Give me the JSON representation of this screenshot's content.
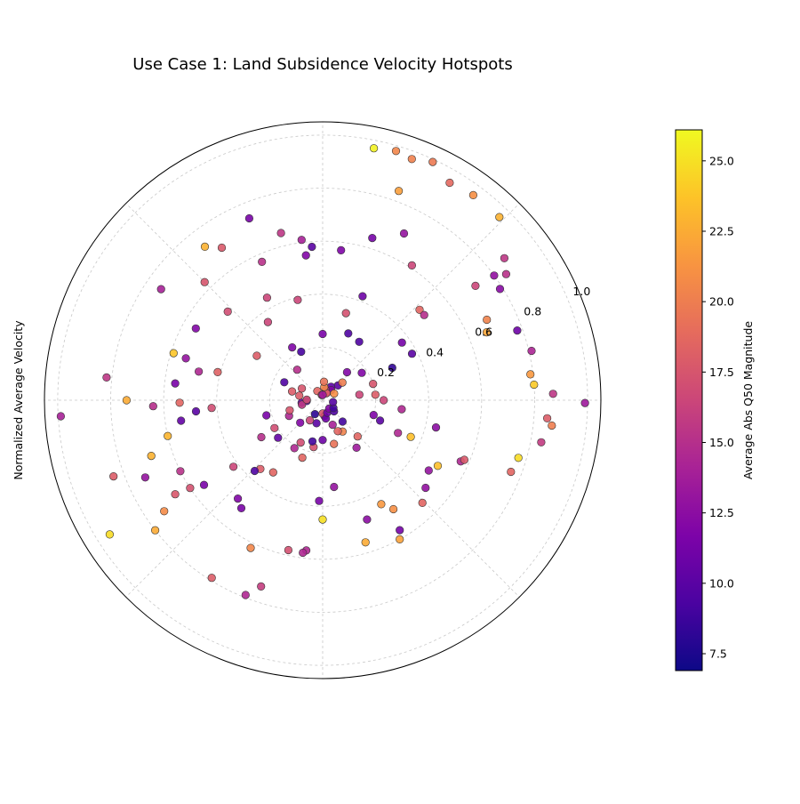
{
  "chart_data": {
    "type": "scatter",
    "projection": "polar",
    "title": "Use Case 1: Land Subsidence Velocity Hotspots",
    "ylabel": "Normalized Average Velocity",
    "rlim": [
      0,
      1.05
    ],
    "r_ticks": [
      0.2,
      0.4,
      0.6,
      0.8,
      1.0
    ],
    "r_tick_labels": [
      "0.2",
      "0.4",
      "0.6",
      "0.8",
      "1.0"
    ],
    "angular_gridlines_deg": [
      0,
      45,
      90,
      135,
      180,
      225,
      270,
      315
    ],
    "grid": true,
    "colormap": "plasma",
    "colorbar": {
      "label": "Average Abs Q50 Magnitude",
      "vmin": 6.9,
      "vmax": 26.1,
      "ticks": [
        7.5,
        10.0,
        12.5,
        15.0,
        17.5,
        20.0,
        22.5,
        25.0
      ],
      "tick_labels": [
        "7.5",
        "10.0",
        "12.5",
        "15.0",
        "17.5",
        "20.0",
        "22.5",
        "25.0"
      ]
    },
    "points_theta_deg_r_color": [
      [
        78.5,
        0.97,
        25.8
      ],
      [
        73.6,
        0.98,
        20.5
      ],
      [
        69.7,
        0.97,
        20.2
      ],
      [
        65.2,
        0.99,
        19.8
      ],
      [
        59.7,
        0.95,
        18.7
      ],
      [
        53.7,
        0.96,
        21.0
      ],
      [
        46.0,
        0.96,
        22.8
      ],
      [
        38.0,
        0.87,
        15.5
      ],
      [
        34.5,
        0.84,
        15.2
      ],
      [
        36.0,
        0.8,
        12.8
      ],
      [
        36.8,
        0.72,
        16.5
      ],
      [
        32.1,
        0.79,
        12.3
      ],
      [
        26.1,
        0.69,
        20.3
      ],
      [
        22.5,
        0.67,
        22.1
      ],
      [
        19.7,
        0.78,
        11.0
      ],
      [
        13.3,
        0.81,
        14.3
      ],
      [
        7.1,
        0.79,
        21.5
      ],
      [
        4.2,
        0.8,
        24.0
      ],
      [
        1.6,
        0.87,
        15.5
      ],
      [
        -0.6,
        0.99,
        13.5
      ],
      [
        -4.6,
        0.85,
        18.0
      ],
      [
        -6.3,
        0.87,
        20.0
      ],
      [
        -10.9,
        0.84,
        15.8
      ],
      [
        -16.4,
        0.77,
        24.8
      ],
      [
        -20.8,
        0.76,
        18.5
      ],
      [
        -23.9,
        0.57,
        14.5
      ],
      [
        -22.8,
        0.58,
        17.8
      ],
      [
        -29.7,
        0.5,
        23.5
      ],
      [
        -40.4,
        0.51,
        12.8
      ],
      [
        -33.5,
        0.48,
        13.0
      ],
      [
        -45.8,
        0.54,
        18.5
      ],
      [
        -57.0,
        0.49,
        21.0
      ],
      [
        -60.6,
        0.45,
        21.5
      ],
      [
        -59.3,
        0.57,
        11.3
      ],
      [
        -61.0,
        0.6,
        22.0
      ],
      [
        -69.6,
        0.48,
        12.5
      ],
      [
        -73.2,
        0.56,
        22.5
      ],
      [
        -82.5,
        0.33,
        13.0
      ],
      [
        -90.0,
        0.45,
        25.0
      ],
      [
        -92.0,
        0.38,
        11.5
      ],
      [
        -96.2,
        0.57,
        14.5
      ],
      [
        -97.4,
        0.58,
        14.5
      ],
      [
        -102.9,
        0.58,
        17.2
      ],
      [
        -111.6,
        0.79,
        14.5
      ],
      [
        -108.3,
        0.74,
        16.0
      ],
      [
        -116.0,
        0.62,
        20.5
      ],
      [
        -122.0,
        0.79,
        18.0
      ],
      [
        -127.0,
        0.51,
        11.5
      ],
      [
        -130.8,
        0.49,
        12.0
      ],
      [
        -124.5,
        0.33,
        18.5
      ],
      [
        -132.2,
        0.35,
        18.0
      ],
      [
        -133.9,
        0.37,
        9.5
      ],
      [
        -143.3,
        0.42,
        16.5
      ],
      [
        -144.5,
        0.55,
        11.5
      ],
      [
        -146.5,
        0.6,
        17.3
      ],
      [
        -147.5,
        0.66,
        17.7
      ],
      [
        -145.0,
        0.73,
        20.8
      ],
      [
        -142.2,
        0.8,
        22.5
      ],
      [
        -147.8,
        0.95,
        24.8
      ],
      [
        -153.5,
        0.6,
        15.2
      ],
      [
        -156.5,
        0.73,
        13.0
      ],
      [
        -160.0,
        0.84,
        18.0
      ],
      [
        -162.0,
        0.68,
        22.8
      ],
      [
        -167.0,
        0.6,
        23.0
      ],
      [
        -171.8,
        0.54,
        10.5
      ],
      [
        -175.0,
        0.48,
        10.0
      ],
      [
        -176.0,
        0.42,
        17.0
      ],
      [
        -179.0,
        0.54,
        18.5
      ],
      [
        -180.0,
        0.74,
        22.5
      ],
      [
        -176.5,
        0.99,
        14.0
      ],
      [
        -178.0,
        0.64,
        15.0
      ],
      [
        174.0,
        0.82,
        15.5
      ],
      [
        173.5,
        0.56,
        11.5
      ],
      [
        165.0,
        0.41,
        18.3
      ],
      [
        163.0,
        0.54,
        13.0
      ],
      [
        167.0,
        0.48,
        14.5
      ],
      [
        162.5,
        0.59,
        23.8
      ],
      [
        150.5,
        0.55,
        12.0
      ],
      [
        145.5,
        0.74,
        14.0
      ],
      [
        135.0,
        0.63,
        17.5
      ],
      [
        137.0,
        0.49,
        17.0
      ],
      [
        127.5,
        0.73,
        22.8
      ],
      [
        123.5,
        0.69,
        17.8
      ],
      [
        118.5,
        0.44,
        16.5
      ],
      [
        113.7,
        0.57,
        15.2
      ],
      [
        112.0,
        0.74,
        11.5
      ],
      [
        104.0,
        0.65,
        15.5
      ],
      [
        94.0,
        0.58,
        10.0
      ],
      [
        97.5,
        0.61,
        14.0
      ],
      [
        96.6,
        0.55,
        12.0
      ],
      [
        83.0,
        0.57,
        11.8
      ],
      [
        73.0,
        0.64,
        11.3
      ],
      [
        64.0,
        0.7,
        13.0
      ],
      [
        56.5,
        0.61,
        16.5
      ],
      [
        43.0,
        0.5,
        18.5
      ],
      [
        40.0,
        0.5,
        15.0
      ],
      [
        36.0,
        0.37,
        11.3
      ],
      [
        27.5,
        0.38,
        10.0
      ],
      [
        25.0,
        0.29,
        8.3
      ],
      [
        35.0,
        0.18,
        12.0
      ],
      [
        18.0,
        0.2,
        17.5
      ],
      [
        8.5,
        0.14,
        16.5
      ],
      [
        6.0,
        0.2,
        18.0
      ],
      [
        0.0,
        0.23,
        16.5
      ],
      [
        -6.5,
        0.3,
        14.5
      ],
      [
        -13.5,
        0.44,
        12.5
      ],
      [
        -23.5,
        0.31,
        14.5
      ],
      [
        -22.6,
        0.36,
        23.5
      ],
      [
        -19.5,
        0.23,
        10.0
      ],
      [
        -16.2,
        0.2,
        11.8
      ],
      [
        -47.0,
        0.11,
        9.0
      ],
      [
        -54.5,
        0.22,
        13.5
      ],
      [
        -46.0,
        0.19,
        18.5
      ],
      [
        -57.5,
        0.14,
        20.3
      ],
      [
        -68.0,
        0.1,
        14.0
      ],
      [
        -75.5,
        0.17,
        19.3
      ],
      [
        -64.0,
        0.13,
        18.5
      ],
      [
        -83.5,
        0.06,
        11.5
      ],
      [
        -90.0,
        0.05,
        17.5
      ],
      [
        -105.0,
        0.09,
        10.0
      ],
      [
        -119.0,
        0.06,
        8.0
      ],
      [
        -122.5,
        0.09,
        16.5
      ],
      [
        -101.0,
        0.18,
        17.3
      ],
      [
        -117.5,
        0.18,
        17.0
      ],
      [
        -120.5,
        0.21,
        14.5
      ],
      [
        -109.5,
        0.23,
        18.5
      ],
      [
        -104.0,
        0.16,
        9.0
      ],
      [
        -90.0,
        0.15,
        11.0
      ],
      [
        -80.0,
        0.07,
        11.0
      ],
      [
        -70.0,
        0.05,
        11.0
      ],
      [
        -52.0,
        0.04,
        12.0
      ],
      [
        -44.5,
        0.06,
        9.5
      ],
      [
        -36.0,
        0.05,
        9.0
      ],
      [
        -150.0,
        0.21,
        17.0
      ],
      [
        -155.0,
        0.14,
        14.5
      ],
      [
        -163.0,
        0.13,
        17.5
      ],
      [
        -173.0,
        0.08,
        11.0
      ],
      [
        -177.0,
        0.06,
        10.0
      ],
      [
        -168.0,
        0.08,
        15.5
      ],
      [
        -165.0,
        0.22,
        11.5
      ],
      [
        -140.0,
        0.22,
        10.5
      ],
      [
        -149.0,
        0.27,
        15.0
      ],
      [
        178.0,
        0.06,
        17.0
      ],
      [
        169.0,
        0.09,
        18.0
      ],
      [
        164.0,
        0.12,
        18.0
      ],
      [
        150.5,
        0.09,
        17.5
      ],
      [
        120.0,
        0.04,
        18.5
      ],
      [
        100.0,
        0.02,
        17.0
      ],
      [
        146.0,
        0.3,
        18.0
      ],
      [
        155.0,
        0.16,
        9.5
      ],
      [
        125.0,
        0.36,
        16.5
      ],
      [
        104.0,
        0.39,
        16.5
      ],
      [
        120.0,
        0.23,
        11.8
      ],
      [
        114.0,
        0.2,
        9.2
      ],
      [
        75.0,
        0.34,
        17.3
      ],
      [
        69.0,
        0.42,
        11.0
      ],
      [
        90.0,
        0.25,
        11.5
      ],
      [
        69.0,
        0.27,
        9.5
      ],
      [
        58.0,
        0.26,
        9.5
      ],
      [
        44.0,
        0.08,
        10.0
      ],
      [
        58.0,
        0.06,
        10.0
      ],
      [
        50.0,
        0.05,
        12.0
      ],
      [
        73.5,
        0.04,
        15.5
      ],
      [
        67.0,
        0.03,
        17.5
      ],
      [
        61.5,
        0.03,
        18.0
      ],
      [
        83.0,
        0.05,
        20.5
      ],
      [
        86.0,
        0.07,
        19.3
      ],
      [
        30.0,
        0.05,
        21.0
      ],
      [
        49.0,
        0.14,
        12.0
      ],
      [
        90.0,
        0.02,
        13.5
      ],
      [
        42.0,
        0.1,
        20.0
      ],
      [
        130.0,
        0.15,
        15.0
      ],
      [
        -135.0,
        0.12,
        12.0
      ],
      [
        -10.0,
        0.04,
        9.8
      ],
      [
        70.0,
        0.84,
        21.8
      ]
    ]
  }
}
